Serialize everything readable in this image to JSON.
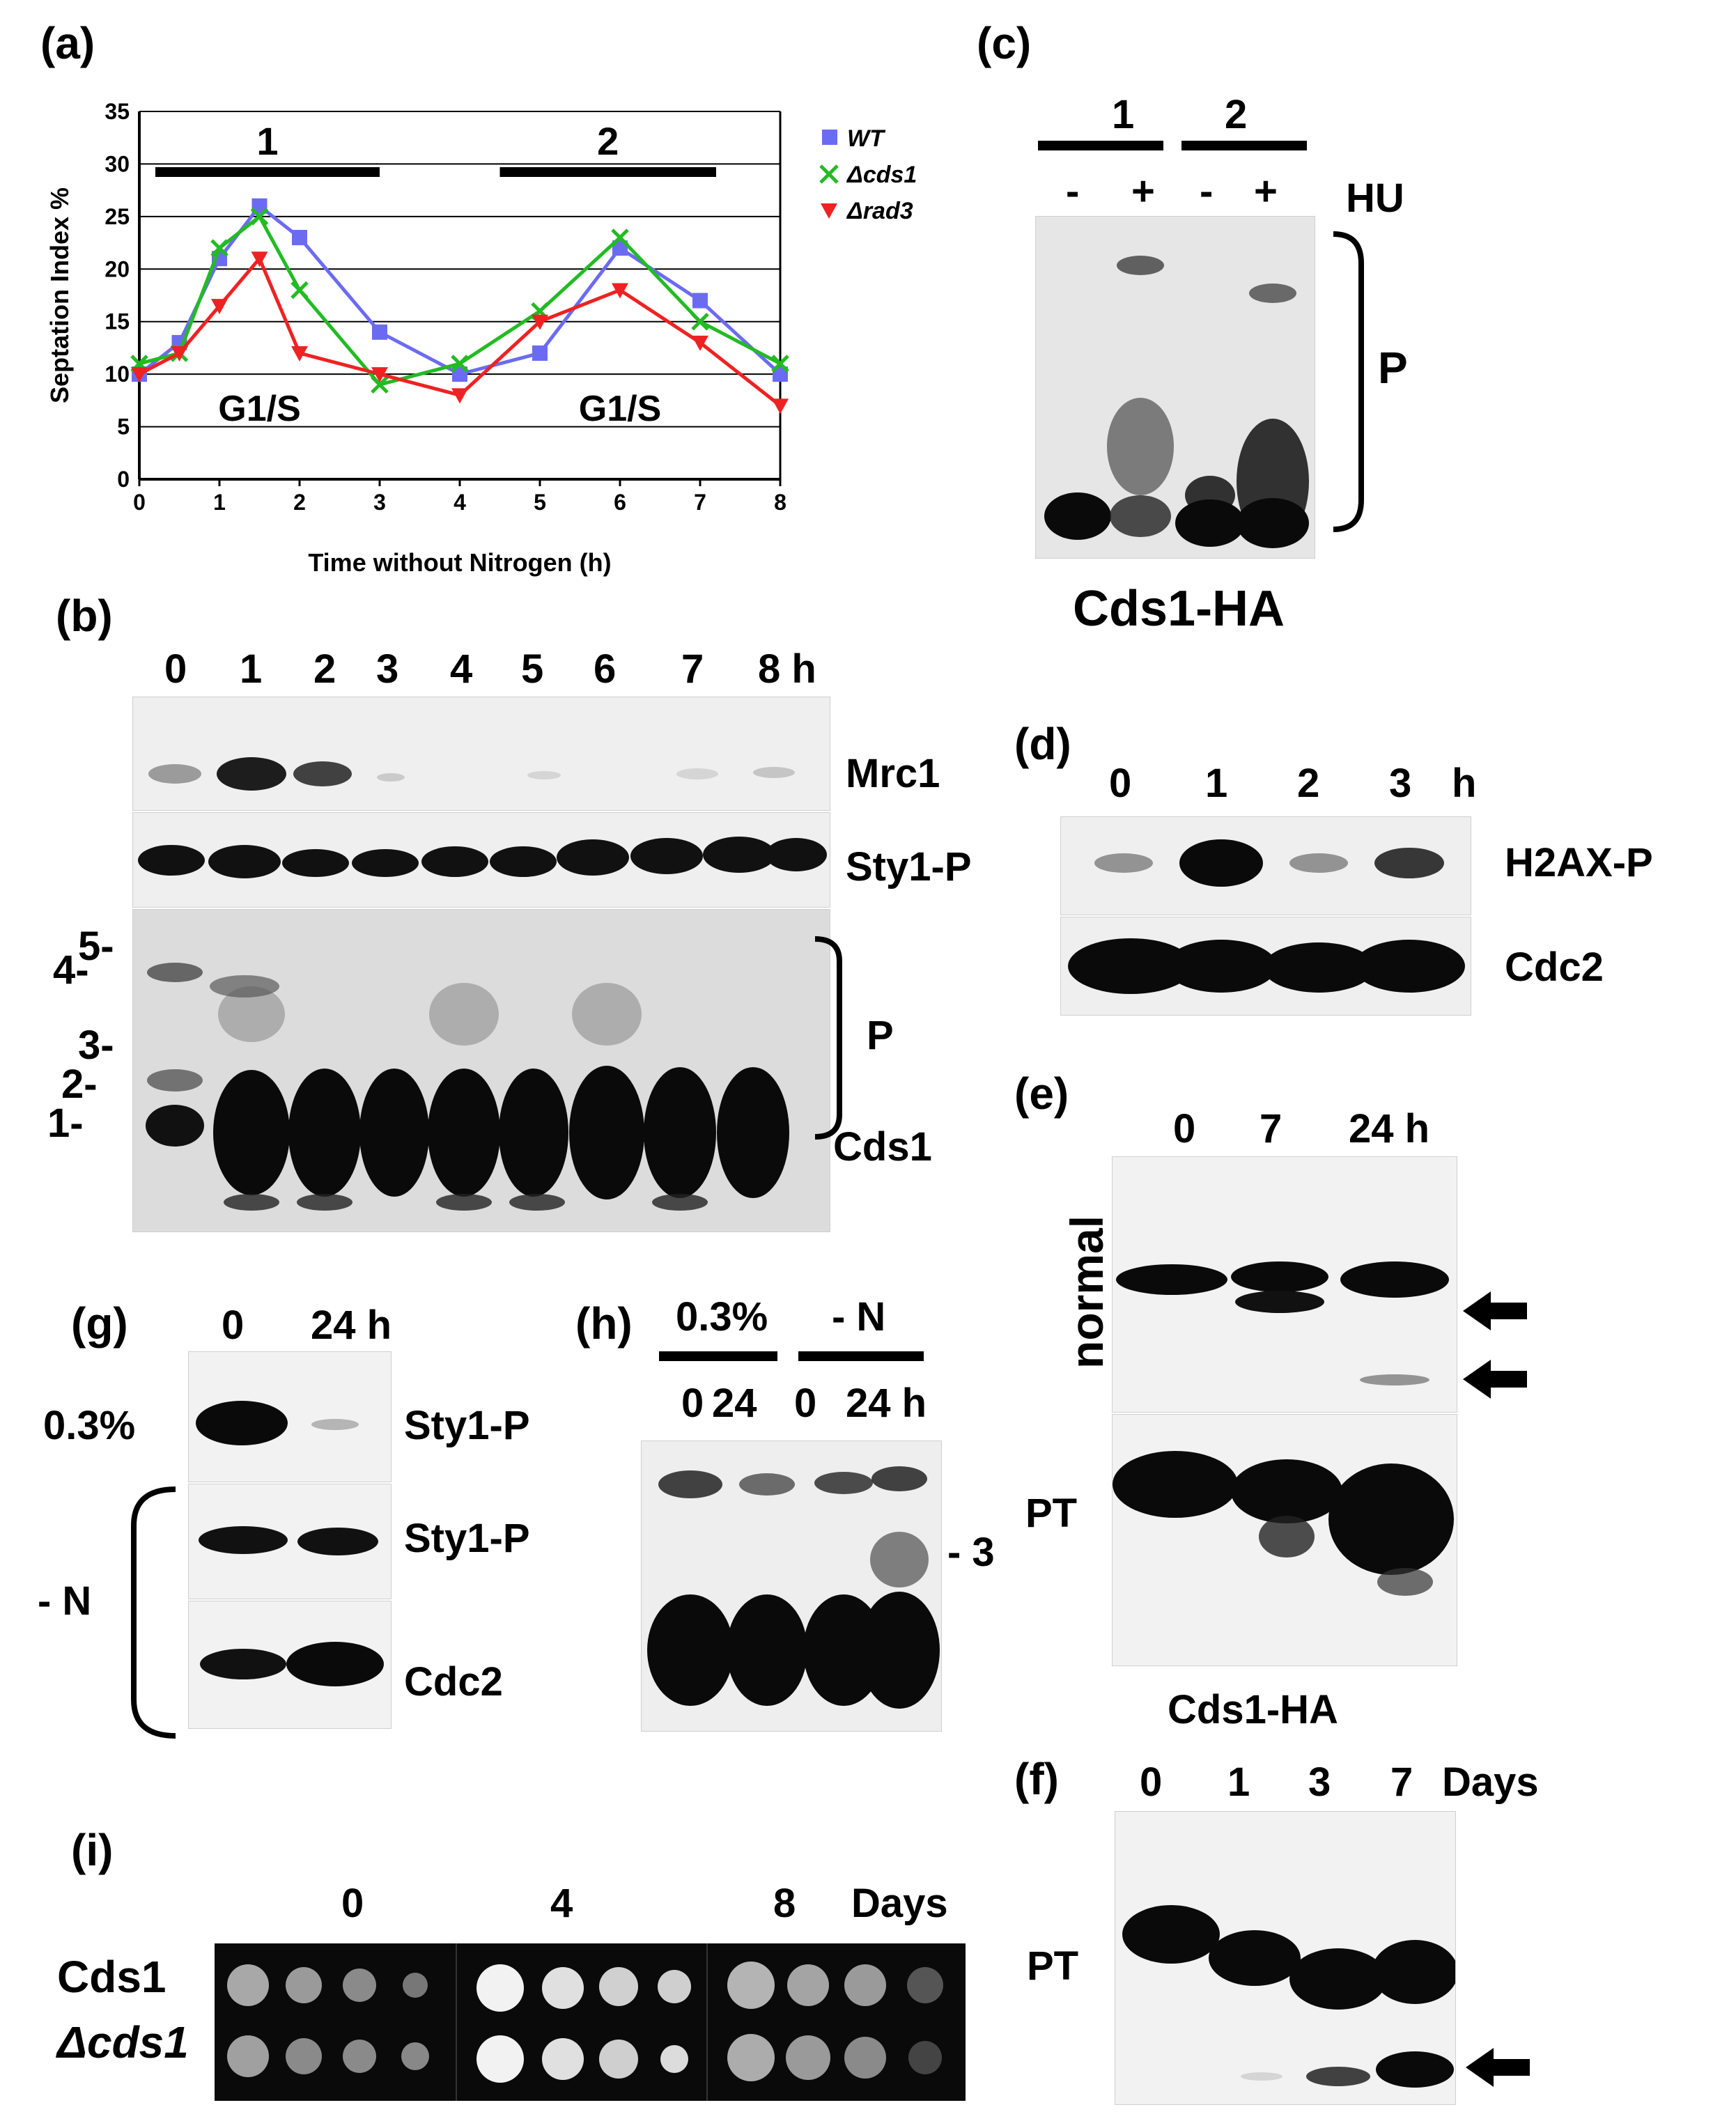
{
  "panels": {
    "a": {
      "letter": "(a)",
      "chart_data": {
        "type": "line",
        "x": [
          0,
          0.5,
          1,
          1.5,
          2,
          3,
          4,
          5,
          6,
          7,
          8
        ],
        "xticks": [
          "0",
          "1",
          "2",
          "3",
          "4",
          "5",
          "6",
          "7",
          "8"
        ],
        "yticks": [
          "0",
          "5",
          "10",
          "15",
          "20",
          "25",
          "30",
          "35"
        ],
        "xlabel": "Time without Nitrogen (h)",
        "ylabel": "Septation Index %",
        "xlim": [
          0,
          8
        ],
        "ylim": [
          0,
          35
        ],
        "grid": "horizontal",
        "legend_position": "right",
        "series": [
          {
            "name": "WT",
            "color": "#6b6bf2",
            "marker": "square",
            "values": [
              10,
              13,
              21,
              26,
              23,
              14,
              10,
              12,
              22,
              17,
              10
            ]
          },
          {
            "name": "Δcds1",
            "color": "#22bb22",
            "marker": "x",
            "values": [
              11,
              12,
              22,
              25,
              18,
              9,
              11,
              16,
              23,
              15,
              11
            ]
          },
          {
            "name": "Δrad3",
            "color": "#ee2222",
            "marker": "triangle-down",
            "values": [
              10,
              12,
              16.5,
              21,
              12,
              10,
              8,
              15,
              18,
              13,
              7
            ]
          }
        ],
        "annotations": [
          {
            "text": "1",
            "bar_from": 0.2,
            "bar_to": 3
          },
          {
            "text": "2",
            "bar_from": 4.5,
            "bar_to": 7.2
          },
          {
            "text": "G1/S",
            "x": 1.5
          },
          {
            "text": "G1/S",
            "x": 6
          }
        ]
      }
    },
    "b": {
      "letter": "(b)",
      "lanes": [
        "0",
        "1",
        "2",
        "3",
        "4",
        "5",
        "6",
        "7",
        "8 h"
      ],
      "proteins": {
        "mrc1": "Mrc1",
        "sty1p": "Sty1-P",
        "cds1": "Cds1"
      },
      "bracket_label": "P",
      "markers": [
        "5-",
        "4-",
        "3-",
        "2-",
        "1-"
      ]
    },
    "c": {
      "letter": "(c)",
      "groups": [
        "1",
        "2"
      ],
      "hu_signs": [
        "-",
        "+",
        "-",
        "+"
      ],
      "hu_label": "HU",
      "bracket_label": "P",
      "caption": "Cds1-HA"
    },
    "d": {
      "letter": "(d)",
      "lanes": [
        "0",
        "1",
        "2",
        "3",
        "h"
      ],
      "proteins": {
        "h2ax": "H2AX-P",
        "cdc2": "Cdc2"
      }
    },
    "e": {
      "letter": "(e)",
      "lanes": [
        "0",
        "7",
        "24 h"
      ],
      "side_normal": "normal",
      "side_pt": "PT",
      "caption": "Cds1-HA"
    },
    "f": {
      "letter": "(f)",
      "lanes": [
        "0",
        "1",
        "3",
        "7",
        "Days"
      ],
      "side_pt": "PT"
    },
    "g": {
      "letter": "(g)",
      "lanes": [
        "0",
        "24 h"
      ],
      "row_label_top": "0.3%",
      "row_label_bracket": "- N",
      "proteins": {
        "sty1p_a": "Sty1-P",
        "sty1p_b": "Sty1-P",
        "cdc2": "Cdc2"
      }
    },
    "h": {
      "letter": "(h)",
      "groups": [
        "0.3%",
        "- N"
      ],
      "lanes": [
        "0",
        "24",
        "0",
        "24 h"
      ],
      "marker": "- 3"
    },
    "i": {
      "letter": "(i)",
      "days": [
        "0",
        "4",
        "8",
        "Days"
      ],
      "strains": [
        "Cds1",
        "Δcds1"
      ]
    }
  }
}
